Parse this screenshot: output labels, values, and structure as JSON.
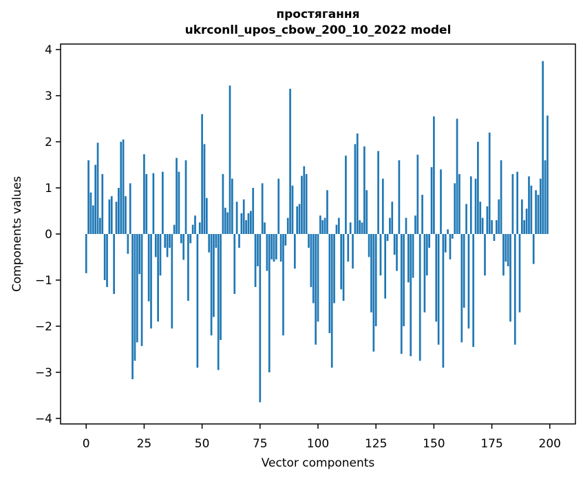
{
  "figure": {
    "title_line1": "простягання",
    "title_line2": "ukrconll_upos_cbow_200_10_2022 model",
    "xlabel": "Vector components",
    "ylabel": "Components values",
    "bar_color": "#1f77b4",
    "background": "#ffffff",
    "axis_color": "#000000"
  },
  "chart_data": {
    "type": "bar",
    "title": "простягання\nukrconll_upos_cbow_200_10_2022 model",
    "xlabel": "Vector components",
    "ylabel": "Components values",
    "legend": "none",
    "grid": false,
    "x_start": 0,
    "n_bars": 200,
    "bar_width": 0.8,
    "x_ticks": [
      0,
      25,
      50,
      75,
      100,
      125,
      150,
      175,
      200
    ],
    "y_ticks": [
      -4,
      -3,
      -2,
      -1,
      0,
      1,
      2,
      3,
      4
    ],
    "xlim": [
      -11.05,
      211.05
    ],
    "ylim": [
      -4.12,
      4.12
    ],
    "values": [
      -0.85,
      1.6,
      0.9,
      0.62,
      1.5,
      1.98,
      0.35,
      1.3,
      -1.0,
      -1.15,
      0.75,
      0.82,
      -1.3,
      0.7,
      1.0,
      2.0,
      2.05,
      0.82,
      -0.43,
      1.1,
      -3.15,
      -2.75,
      -2.35,
      -0.87,
      -2.43,
      1.73,
      1.3,
      -1.46,
      -2.05,
      1.32,
      -0.5,
      -1.9,
      -0.9,
      1.35,
      -0.3,
      -0.5,
      -0.3,
      -2.05,
      0.2,
      1.65,
      1.35,
      -0.2,
      -0.56,
      1.6,
      -1.45,
      -0.2,
      0.2,
      0.4,
      -2.9,
      0.25,
      2.6,
      1.95,
      0.78,
      -0.4,
      -2.2,
      -1.8,
      -0.3,
      -2.95,
      -2.3,
      1.3,
      0.57,
      0.47,
      3.22,
      1.2,
      -1.3,
      0.7,
      -0.3,
      0.45,
      0.75,
      0.3,
      0.45,
      0.5,
      1.0,
      -1.15,
      -0.7,
      -3.65,
      1.1,
      0.25,
      -0.8,
      -3.0,
      -0.55,
      -0.6,
      -0.55,
      1.2,
      -0.6,
      -2.2,
      -0.25,
      0.35,
      3.15,
      1.05,
      -0.75,
      0.6,
      0.65,
      1.26,
      1.47,
      1.3,
      -0.3,
      -1.15,
      -1.5,
      -2.4,
      -1.9,
      0.4,
      0.3,
      0.35,
      0.95,
      -2.15,
      -2.9,
      -1.5,
      0.2,
      0.35,
      -1.2,
      -1.45,
      1.7,
      -0.6,
      0.25,
      -0.75,
      1.95,
      2.18,
      0.3,
      0.25,
      1.9,
      0.95,
      -0.5,
      -1.7,
      -2.55,
      -2.0,
      1.8,
      -0.9,
      1.2,
      -1.4,
      -0.15,
      0.35,
      0.7,
      -0.45,
      -0.8,
      1.6,
      -2.6,
      -2.0,
      0.35,
      -1.05,
      -2.65,
      -0.95,
      0.4,
      1.72,
      -2.75,
      0.85,
      -1.7,
      -0.9,
      -0.3,
      1.45,
      2.55,
      -1.9,
      -2.4,
      1.4,
      -2.9,
      -0.4,
      0.1,
      -0.55,
      -0.1,
      1.1,
      2.5,
      1.3,
      -2.35,
      -1.6,
      0.65,
      -2.05,
      1.25,
      -2.45,
      1.2,
      2.0,
      0.7,
      0.35,
      -0.9,
      0.6,
      2.2,
      0.3,
      -0.15,
      0.3,
      0.75,
      1.6,
      -0.9,
      -0.6,
      -0.7,
      -1.9,
      1.3,
      -2.4,
      1.35,
      -1.7,
      0.75,
      0.3,
      0.55,
      1.25,
      1.05,
      -0.65,
      0.95,
      0.85,
      1.2,
      3.75,
      1.6,
      2.57
    ]
  }
}
